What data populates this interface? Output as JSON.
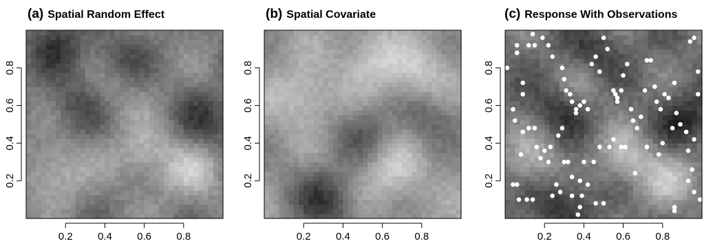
{
  "chart_data": [
    {
      "type": "heatmap",
      "panel_letter": "(a)",
      "title": "Spatial Random Effect",
      "xlabel": "",
      "ylabel": "",
      "xlim": [
        0,
        1
      ],
      "ylim": [
        0,
        1
      ],
      "x_ticks": [
        "0.2",
        "0.4",
        "0.6",
        "0.8"
      ],
      "y_ticks": [
        "0.2",
        "0.4",
        "0.6",
        "0.8"
      ],
      "colormap": "grayscale",
      "grid_resolution": 40,
      "color_range": [
        "#2a2a2a",
        "#d9d9d9"
      ],
      "field_features": [
        {
          "kind": "dark",
          "x": 0.92,
          "y": 0.52
        },
        {
          "kind": "dark",
          "x": 0.28,
          "y": 0.62
        },
        {
          "kind": "dark",
          "x": 0.45,
          "y": 0.82
        },
        {
          "kind": "dark",
          "x": 0.15,
          "y": 0.92
        },
        {
          "kind": "light",
          "x": 0.85,
          "y": 0.25
        },
        {
          "kind": "light",
          "x": 0.6,
          "y": 0.35
        },
        {
          "kind": "light",
          "x": 0.15,
          "y": 0.25
        },
        {
          "kind": "light",
          "x": 0.4,
          "y": 0.7
        }
      ]
    },
    {
      "type": "heatmap",
      "panel_letter": "(b)",
      "title": "Spatial Covariate",
      "xlabel": "",
      "ylabel": "",
      "xlim": [
        0,
        1
      ],
      "ylim": [
        0,
        1
      ],
      "x_ticks": [
        "0.2",
        "0.4",
        "0.6",
        "0.8"
      ],
      "y_ticks": [
        "0.2",
        "0.4",
        "0.6",
        "0.8"
      ],
      "colormap": "grayscale",
      "grid_resolution": 40,
      "color_range": [
        "#2a2a2a",
        "#d9d9d9"
      ],
      "field_features": [
        {
          "kind": "dark",
          "x": 0.25,
          "y": 0.15
        },
        {
          "kind": "dark",
          "x": 0.35,
          "y": 0.05
        },
        {
          "kind": "dark",
          "x": 0.85,
          "y": 0.55
        },
        {
          "kind": "dark",
          "x": 0.5,
          "y": 0.45
        },
        {
          "kind": "light",
          "x": 0.65,
          "y": 0.25
        },
        {
          "kind": "light",
          "x": 0.2,
          "y": 0.65
        },
        {
          "kind": "light",
          "x": 0.55,
          "y": 0.85
        },
        {
          "kind": "light",
          "x": 0.8,
          "y": 0.75
        }
      ]
    },
    {
      "type": "heatmap",
      "panel_letter": "(c)",
      "title": "Response With Observations",
      "xlabel": "",
      "ylabel": "",
      "xlim": [
        0,
        1
      ],
      "ylim": [
        0,
        1
      ],
      "x_ticks": [
        "0.2",
        "0.4",
        "0.6",
        "0.8"
      ],
      "y_ticks": [
        "0.2",
        "0.4",
        "0.6",
        "0.8"
      ],
      "colormap": "grayscale",
      "grid_resolution": 40,
      "color_range": [
        "#181818",
        "#d4d4d4"
      ],
      "field_features": [
        {
          "kind": "dark",
          "x": 0.28,
          "y": 0.1
        },
        {
          "kind": "dark",
          "x": 0.92,
          "y": 0.52
        },
        {
          "kind": "dark",
          "x": 0.3,
          "y": 0.6
        },
        {
          "kind": "dark",
          "x": 0.45,
          "y": 0.85
        },
        {
          "kind": "light",
          "x": 0.85,
          "y": 0.22
        },
        {
          "kind": "light",
          "x": 0.62,
          "y": 0.32
        },
        {
          "kind": "light",
          "x": 0.15,
          "y": 0.3
        },
        {
          "kind": "light",
          "x": 0.4,
          "y": 0.72
        }
      ],
      "observation_color": "#ffffff",
      "observations": [
        [
          0.01,
          0.8
        ],
        [
          0.04,
          0.58
        ],
        [
          0.05,
          0.52
        ],
        [
          0.06,
          0.92
        ],
        [
          0.06,
          0.88
        ],
        [
          0.09,
          0.72
        ],
        [
          0.09,
          0.66
        ],
        [
          0.12,
          0.92
        ],
        [
          0.14,
          0.98
        ],
        [
          0.15,
          0.92
        ],
        [
          0.19,
          0.96
        ],
        [
          0.22,
          0.92
        ],
        [
          0.24,
          0.86
        ],
        [
          0.29,
          0.8
        ],
        [
          0.3,
          0.74
        ],
        [
          0.31,
          0.68
        ],
        [
          0.33,
          0.66
        ],
        [
          0.34,
          0.62
        ],
        [
          0.36,
          0.58
        ],
        [
          0.36,
          0.56
        ],
        [
          0.38,
          0.6
        ],
        [
          0.4,
          0.62
        ],
        [
          0.42,
          0.58
        ],
        [
          0.44,
          0.82
        ],
        [
          0.46,
          0.86
        ],
        [
          0.48,
          0.78
        ],
        [
          0.5,
          0.96
        ],
        [
          0.52,
          0.9
        ],
        [
          0.55,
          0.68
        ],
        [
          0.56,
          0.66
        ],
        [
          0.57,
          0.64
        ],
        [
          0.57,
          0.62
        ],
        [
          0.59,
          0.68
        ],
        [
          0.6,
          0.76
        ],
        [
          0.62,
          0.82
        ],
        [
          0.64,
          0.58
        ],
        [
          0.65,
          0.52
        ],
        [
          0.67,
          0.48
        ],
        [
          0.69,
          0.54
        ],
        [
          0.71,
          0.68
        ],
        [
          0.72,
          0.84
        ],
        [
          0.74,
          0.84
        ],
        [
          0.76,
          0.7
        ],
        [
          0.77,
          0.62
        ],
        [
          0.79,
          0.58
        ],
        [
          0.81,
          0.66
        ],
        [
          0.83,
          0.64
        ],
        [
          0.86,
          0.72
        ],
        [
          0.87,
          0.56
        ],
        [
          0.89,
          0.5
        ],
        [
          0.92,
          0.46
        ],
        [
          0.94,
          0.94
        ],
        [
          0.96,
          0.96
        ],
        [
          0.98,
          0.78
        ],
        [
          0.98,
          0.66
        ],
        [
          0.96,
          0.42
        ],
        [
          0.93,
          0.36
        ],
        [
          0.95,
          0.26
        ],
        [
          0.93,
          0.2
        ],
        [
          0.96,
          0.14
        ],
        [
          0.99,
          0.1
        ],
        [
          0.86,
          0.06
        ],
        [
          0.86,
          0.04
        ],
        [
          0.78,
          0.34
        ],
        [
          0.72,
          0.38
        ],
        [
          0.66,
          0.24
        ],
        [
          0.61,
          0.38
        ],
        [
          0.59,
          0.38
        ],
        [
          0.55,
          0.42
        ],
        [
          0.53,
          0.38
        ],
        [
          0.5,
          0.08
        ],
        [
          0.46,
          0.08
        ],
        [
          0.42,
          0.18
        ],
        [
          0.39,
          0.12
        ],
        [
          0.38,
          0.2
        ],
        [
          0.38,
          0.06
        ],
        [
          0.37,
          0.02
        ],
        [
          0.34,
          0.22
        ],
        [
          0.3,
          0.3
        ],
        [
          0.28,
          0.14
        ],
        [
          0.26,
          0.18
        ],
        [
          0.24,
          0.12
        ],
        [
          0.22,
          0.3
        ],
        [
          0.2,
          0.36
        ],
        [
          0.18,
          0.32
        ],
        [
          0.16,
          0.38
        ],
        [
          0.15,
          0.48
        ],
        [
          0.12,
          0.48
        ],
        [
          0.09,
          0.46
        ],
        [
          0.08,
          0.34
        ],
        [
          0.06,
          0.18
        ],
        [
          0.04,
          0.18
        ],
        [
          0.07,
          0.1
        ],
        [
          0.11,
          0.1
        ],
        [
          0.14,
          0.1
        ],
        [
          0.23,
          0.38
        ],
        [
          0.27,
          0.44
        ],
        [
          0.29,
          0.48
        ],
        [
          0.32,
          0.3
        ],
        [
          0.4,
          0.3
        ],
        [
          0.45,
          0.3
        ],
        [
          0.48,
          0.38
        ],
        [
          0.85,
          0.48
        ],
        [
          0.8,
          0.4
        ],
        [
          0.34,
          0.12
        ]
      ]
    }
  ]
}
